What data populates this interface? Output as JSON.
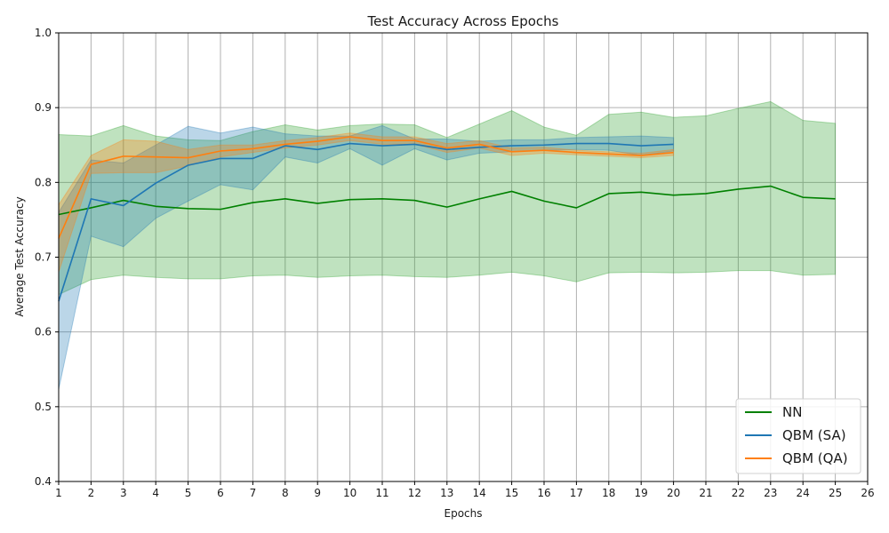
{
  "chart_data": {
    "type": "line",
    "title": "Test Accuracy Across Epochs",
    "xlabel": "Epochs",
    "ylabel": "Average Test Accuracy",
    "xlim": [
      1,
      26
    ],
    "ylim": [
      0.4,
      1.0
    ],
    "xticks": [
      1,
      2,
      3,
      4,
      5,
      6,
      7,
      8,
      9,
      10,
      11,
      12,
      13,
      14,
      15,
      16,
      17,
      18,
      19,
      20,
      21,
      22,
      23,
      24,
      25,
      26
    ],
    "yticks": [
      0.4,
      0.5,
      0.6,
      0.7,
      0.8,
      0.9,
      1.0
    ],
    "ytick_labels": [
      "0.4",
      "0.5",
      "0.6",
      "0.7",
      "0.8",
      "0.9",
      "1.0"
    ],
    "grid": true,
    "legend_position": "lower-right",
    "series": [
      {
        "name": "NN",
        "color": "#008000",
        "band_color": "#2ca02c",
        "x": [
          1,
          2,
          3,
          4,
          5,
          6,
          7,
          8,
          9,
          10,
          11,
          12,
          13,
          14,
          15,
          16,
          17,
          18,
          19,
          20,
          21,
          22,
          23,
          24,
          25
        ],
        "values": [
          0.757,
          0.766,
          0.776,
          0.768,
          0.765,
          0.764,
          0.773,
          0.778,
          0.772,
          0.777,
          0.778,
          0.776,
          0.767,
          0.778,
          0.788,
          0.775,
          0.766,
          0.785,
          0.787,
          0.783,
          0.785,
          0.791,
          0.795,
          0.78,
          0.778
        ],
        "upper": [
          0.864,
          0.862,
          0.876,
          0.862,
          0.857,
          0.856,
          0.868,
          0.877,
          0.87,
          0.876,
          0.878,
          0.877,
          0.86,
          0.878,
          0.896,
          0.874,
          0.863,
          0.891,
          0.894,
          0.887,
          0.889,
          0.899,
          0.908,
          0.883,
          0.879
        ],
        "lower": [
          0.65,
          0.67,
          0.676,
          0.673,
          0.671,
          0.671,
          0.675,
          0.676,
          0.673,
          0.675,
          0.676,
          0.674,
          0.673,
          0.676,
          0.68,
          0.675,
          0.667,
          0.679,
          0.68,
          0.679,
          0.68,
          0.682,
          0.682,
          0.676,
          0.677
        ]
      },
      {
        "name": "QBM (SA)",
        "color": "#1f77b4",
        "band_color": "#1f77b4",
        "x": [
          1,
          2,
          3,
          4,
          5,
          6,
          7,
          8,
          9,
          10,
          11,
          12,
          13,
          14,
          15,
          16,
          17,
          18,
          19,
          20
        ],
        "values": [
          0.641,
          0.778,
          0.769,
          0.799,
          0.823,
          0.832,
          0.832,
          0.849,
          0.844,
          0.852,
          0.849,
          0.851,
          0.844,
          0.847,
          0.849,
          0.85,
          0.852,
          0.852,
          0.849,
          0.851
        ],
        "upper": [
          0.76,
          0.83,
          0.826,
          0.85,
          0.875,
          0.866,
          0.874,
          0.865,
          0.862,
          0.862,
          0.876,
          0.858,
          0.858,
          0.855,
          0.857,
          0.857,
          0.86,
          0.861,
          0.862,
          0.86
        ],
        "lower": [
          0.523,
          0.728,
          0.714,
          0.752,
          0.775,
          0.797,
          0.79,
          0.834,
          0.826,
          0.845,
          0.823,
          0.845,
          0.83,
          0.839,
          0.841,
          0.843,
          0.844,
          0.843,
          0.836,
          0.842
        ]
      },
      {
        "name": "QBM (QA)",
        "color": "#ff7f0e",
        "band_color": "#ff7f0e",
        "x": [
          1,
          2,
          3,
          4,
          5,
          6,
          7,
          8,
          9,
          10,
          11,
          12,
          13,
          14,
          15,
          16,
          17,
          18,
          19,
          20
        ],
        "values": [
          0.725,
          0.824,
          0.835,
          0.834,
          0.833,
          0.842,
          0.845,
          0.851,
          0.855,
          0.861,
          0.856,
          0.856,
          0.846,
          0.851,
          0.841,
          0.843,
          0.84,
          0.838,
          0.836,
          0.84
        ],
        "upper": [
          0.77,
          0.836,
          0.857,
          0.855,
          0.844,
          0.85,
          0.85,
          0.856,
          0.86,
          0.866,
          0.861,
          0.861,
          0.852,
          0.856,
          0.846,
          0.847,
          0.843,
          0.841,
          0.839,
          0.844
        ],
        "lower": [
          0.68,
          0.812,
          0.813,
          0.813,
          0.822,
          0.834,
          0.84,
          0.846,
          0.85,
          0.856,
          0.851,
          0.851,
          0.84,
          0.846,
          0.836,
          0.839,
          0.837,
          0.835,
          0.833,
          0.836
        ]
      }
    ]
  }
}
